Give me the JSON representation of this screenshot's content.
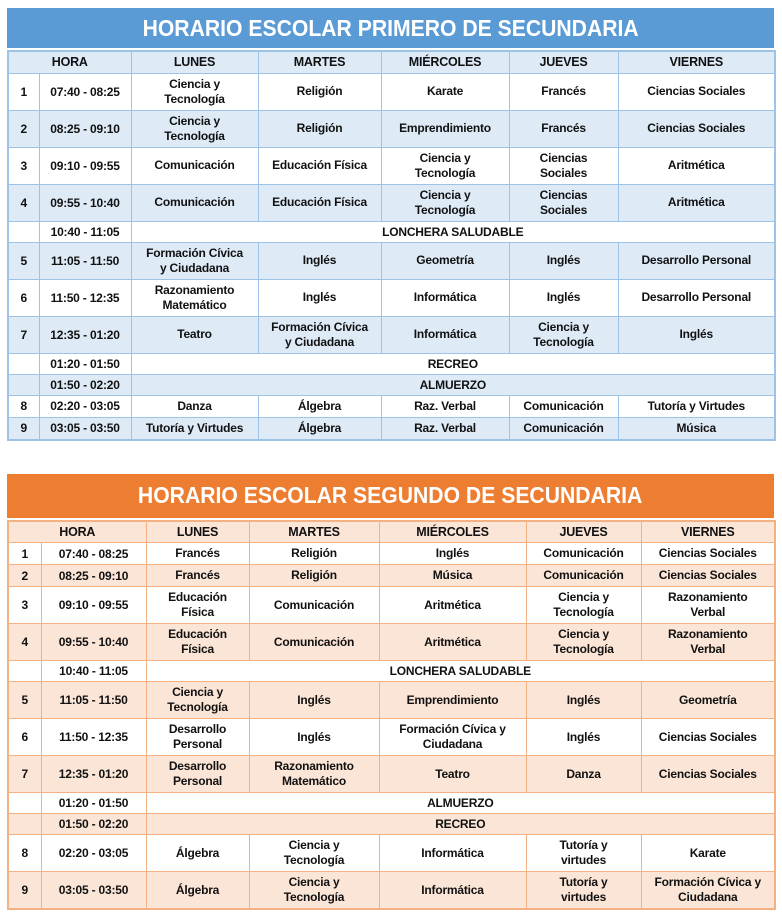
{
  "tables": [
    {
      "title": "HORARIO ESCOLAR PRIMERO DE SECUNDARIA",
      "colors": {
        "accent": "#5B9BD5",
        "light": "#DEEBF7",
        "border": "#9DC3E6",
        "title_text": "#FFFFFF"
      },
      "header": {
        "hora": "HORA",
        "days": [
          "LUNES",
          "MARTES",
          "MIÉRCOLES",
          "JUEVES",
          "VIERNES"
        ]
      },
      "rows": [
        {
          "type": "class",
          "num": "1",
          "time": "07:40 - 08:25",
          "cells": [
            "Ciencia y\nTecnología",
            "Religión",
            "Karate",
            "Francés",
            "Ciencias Sociales"
          ]
        },
        {
          "type": "class",
          "num": "2",
          "time": "08:25 - 09:10",
          "cells": [
            "Ciencia y\nTecnología",
            "Religión",
            "Emprendimiento",
            "Francés",
            "Ciencias Sociales"
          ]
        },
        {
          "type": "class",
          "num": "3",
          "time": "09:10 - 09:55",
          "cells": [
            "Comunicación",
            "Educación Física",
            "Ciencia y\nTecnología",
            "Ciencias\nSociales",
            "Aritmética"
          ]
        },
        {
          "type": "class",
          "num": "4",
          "time": "09:55 - 10:40",
          "cells": [
            "Comunicación",
            "Educación Física",
            "Ciencia y\nTecnología",
            "Ciencias\nSociales",
            "Aritmética"
          ]
        },
        {
          "type": "break",
          "num": "",
          "time": "10:40 - 11:05",
          "label": "LONCHERA SALUDABLE"
        },
        {
          "type": "class",
          "num": "5",
          "time": "11:05 - 11:50",
          "cells": [
            "Formación Cívica\ny Ciudadana",
            "Inglés",
            "Geometría",
            "Inglés",
            "Desarrollo Personal"
          ]
        },
        {
          "type": "class",
          "num": "6",
          "time": "11:50 - 12:35",
          "cells": [
            "Razonamiento\nMatemático",
            "Inglés",
            "Informática",
            "Inglés",
            "Desarrollo Personal"
          ]
        },
        {
          "type": "class",
          "num": "7",
          "time": "12:35 - 01:20",
          "cells": [
            "Teatro",
            "Formación Cívica\ny Ciudadana",
            "Informática",
            "Ciencia y\nTecnología",
            "Inglés"
          ]
        },
        {
          "type": "break",
          "num": "",
          "time": "01:20 - 01:50",
          "label": "RECREO"
        },
        {
          "type": "break",
          "num": "",
          "time": "01:50 - 02:20",
          "label": "ALMUERZO"
        },
        {
          "type": "class",
          "num": "8",
          "time": "02:20 - 03:05",
          "cells": [
            "Danza",
            "Álgebra",
            "Raz. Verbal",
            "Comunicación",
            "Tutoría y Virtudes"
          ]
        },
        {
          "type": "class",
          "num": "9",
          "time": "03:05 - 03:50",
          "cells": [
            "Tutoría y Virtudes",
            "Álgebra",
            "Raz. Verbal",
            "Comunicación",
            "Música"
          ]
        }
      ]
    },
    {
      "title": "HORARIO ESCOLAR SEGUNDO DE SECUNDARIA",
      "colors": {
        "accent": "#ED7D31",
        "light": "#FBE5D6",
        "border": "#F4B183",
        "title_text": "#FFFFFF"
      },
      "header": {
        "hora": "HORA",
        "days": [
          "LUNES",
          "MARTES",
          "MIÉRCOLES",
          "JUEVES",
          "VIERNES"
        ]
      },
      "rows": [
        {
          "type": "class",
          "num": "1",
          "time": "07:40 - 08:25",
          "cells": [
            "Francés",
            "Religión",
            "Inglés",
            "Comunicación",
            "Ciencias Sociales"
          ]
        },
        {
          "type": "class",
          "num": "2",
          "time": "08:25 - 09:10",
          "cells": [
            "Francés",
            "Religión",
            "Música",
            "Comunicación",
            "Ciencias Sociales"
          ]
        },
        {
          "type": "class",
          "num": "3",
          "time": "09:10 - 09:55",
          "cells": [
            "Educación\nFísica",
            "Comunicación",
            "Aritmética",
            "Ciencia y\nTecnología",
            "Razonamiento\nVerbal"
          ]
        },
        {
          "type": "class",
          "num": "4",
          "time": "09:55 - 10:40",
          "cells": [
            "Educación\nFísica",
            "Comunicación",
            "Aritmética",
            "Ciencia y\nTecnología",
            "Razonamiento\nVerbal"
          ]
        },
        {
          "type": "break",
          "num": "",
          "time": "10:40 - 11:05",
          "label": "LONCHERA SALUDABLE"
        },
        {
          "type": "class",
          "num": "5",
          "time": "11:05 - 11:50",
          "cells": [
            "Ciencia y\nTecnología",
            "Inglés",
            "Emprendimiento",
            "Inglés",
            "Geometría"
          ]
        },
        {
          "type": "class",
          "num": "6",
          "time": "11:50 - 12:35",
          "cells": [
            "Desarrollo\nPersonal",
            "Inglés",
            "Formación Cívica y\nCiudadana",
            "Inglés",
            "Ciencias Sociales"
          ]
        },
        {
          "type": "class",
          "num": "7",
          "time": "12:35 - 01:20",
          "cells": [
            "Desarrollo\nPersonal",
            "Razonamiento\nMatemático",
            "Teatro",
            "Danza",
            "Ciencias Sociales"
          ]
        },
        {
          "type": "break",
          "num": "",
          "time": "01:20 - 01:50",
          "label": "ALMUERZO"
        },
        {
          "type": "break",
          "num": "",
          "time": "01:50 - 02:20",
          "label": "RECREO"
        },
        {
          "type": "class",
          "num": "8",
          "time": "02:20 - 03:05",
          "cells": [
            "Álgebra",
            "Ciencia y\nTecnología",
            "Informática",
            "Tutoría y\nvirtudes",
            "Karate"
          ]
        },
        {
          "type": "class",
          "num": "9",
          "time": "03:05 - 03:50",
          "cells": [
            "Álgebra",
            "Ciencia y\nTecnología",
            "Informática",
            "Tutoría y\nvirtudes",
            "Formación Cívica y\nCiudadana"
          ]
        }
      ]
    }
  ]
}
